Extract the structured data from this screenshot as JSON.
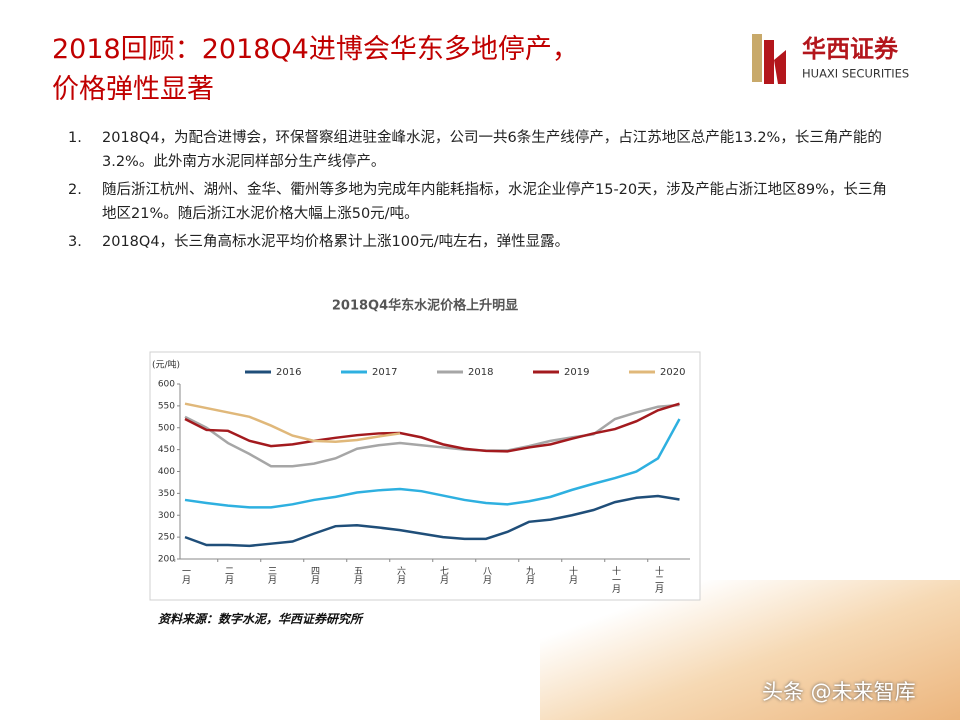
{
  "header": {
    "title_line1": "2018回顾：2018Q4进博会华东多地停产，",
    "title_line2": "价格弹性显著",
    "logo_cn": "华西证券",
    "logo_en": "HUAXI SECURITIES"
  },
  "list": [
    {
      "number": "1.",
      "text": "2018Q4，为配合进博会，环保督察组进驻金峰水泥，公司一共6条生产线停产，占江苏地区总产能13.2%，长三角产能的3.2%。此外南方水泥同样部分生产线停产。"
    },
    {
      "number": "2.",
      "text": "随后浙江杭州、湖州、金华、衢州等多地为完成年内能耗指标，水泥企业停产15-20天，涉及产能占浙江地区89%，长三角地区21%。随后浙江水泥价格大幅上涨50元/吨。"
    },
    {
      "number": "3.",
      "text": "2018Q4，长三角高标水泥平均价格累计上涨100元/吨左右，弹性显露。"
    }
  ],
  "chart_data": {
    "type": "line",
    "title": "2018Q4华东水泥价格上升明显",
    "y_unit": "(元/吨)",
    "categories": [
      "一月",
      null,
      "二月",
      null,
      "三月",
      null,
      "四月",
      null,
      "五月",
      null,
      "六月",
      null,
      "七月",
      null,
      "八月",
      null,
      "九月",
      null,
      "十月",
      null,
      "十一月",
      null,
      "十二月",
      null
    ],
    "series": [
      {
        "name": "2016",
        "color": "#1f4e79",
        "values": [
          250,
          232,
          232,
          230,
          235,
          240,
          258,
          275,
          277,
          272,
          266,
          258,
          250,
          246,
          246,
          262,
          285,
          290,
          300,
          312,
          330,
          340,
          344,
          336
        ]
      },
      {
        "name": "2017",
        "color": "#2eb0e0",
        "values": [
          335,
          328,
          322,
          318,
          318,
          325,
          335,
          342,
          352,
          357,
          360,
          355,
          345,
          335,
          328,
          325,
          332,
          342,
          358,
          372,
          385,
          400,
          430,
          520
        ]
      },
      {
        "name": "2018",
        "color": "#a6a6a6",
        "values": [
          525,
          500,
          465,
          440,
          412,
          412,
          418,
          430,
          452,
          460,
          465,
          460,
          455,
          450,
          448,
          448,
          458,
          470,
          478,
          485,
          520,
          535,
          548,
          552
        ]
      },
      {
        "name": "2019",
        "color": "#a31a1e",
        "values": [
          520,
          495,
          493,
          470,
          458,
          462,
          470,
          477,
          483,
          487,
          488,
          478,
          462,
          452,
          447,
          446,
          455,
          462,
          475,
          487,
          497,
          515,
          540,
          555
        ]
      },
      {
        "name": "2020",
        "color": "#e0b87a",
        "values": [
          555,
          545,
          535,
          525,
          505,
          482,
          470,
          468,
          472,
          480,
          487,
          null,
          null,
          null,
          null,
          null,
          null,
          null,
          null,
          null,
          null,
          null,
          null,
          null
        ]
      }
    ],
    "ylim": [
      200,
      600
    ],
    "yticks": [
      200,
      250,
      300,
      350,
      400,
      450,
      500,
      550,
      600
    ],
    "legend": "top",
    "grid": false
  },
  "source": "资料来源：数字水泥，华西证券研究所",
  "watermark": "头条 @未来智库"
}
